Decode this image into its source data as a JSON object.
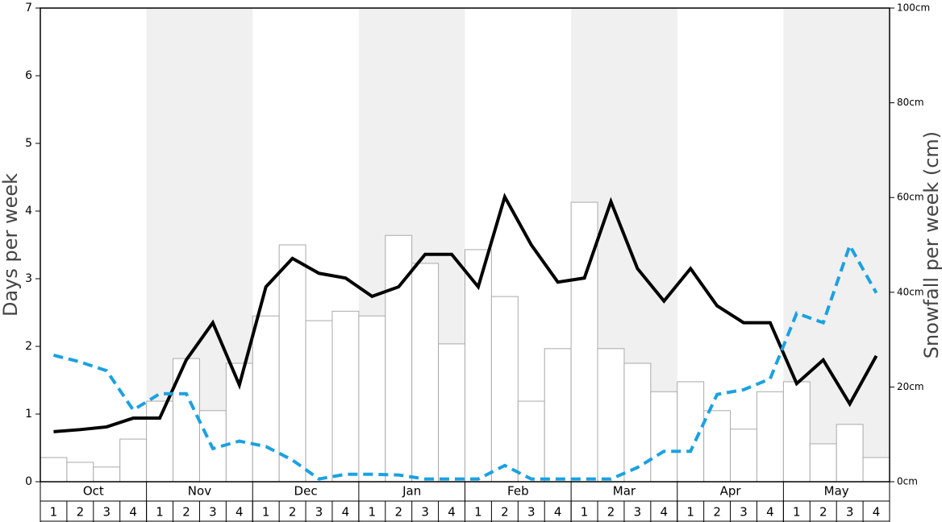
{
  "chart_data": {
    "type": "combo",
    "y_label": "Days per week",
    "y2_label": "Snowfall per week (cm)",
    "months": [
      "Oct",
      "Nov",
      "Dec",
      "Jan",
      "Feb",
      "Mar",
      "Apr",
      "May"
    ],
    "weeks": [
      "1",
      "2",
      "3",
      "4"
    ],
    "ylim": [
      0,
      7
    ],
    "yticks": [
      0,
      1,
      2,
      3,
      4,
      5,
      6,
      7
    ],
    "y2lim": [
      0,
      100
    ],
    "y2ticks": [
      {
        "value": 0,
        "label": "0cm"
      },
      {
        "value": 20,
        "label": "20cm"
      },
      {
        "value": 40,
        "label": "40cm"
      },
      {
        "value": 60,
        "label": "60cm"
      },
      {
        "value": 80,
        "label": "80cm"
      },
      {
        "value": 100,
        "label": "100cm"
      }
    ],
    "series": [
      {
        "type": "bar",
        "axis": "y2",
        "color": "#ffffff",
        "stroke": "#aaaaaa",
        "values": [
          5.1,
          4.1,
          3.1,
          9.0,
          17.0,
          26.0,
          15.0,
          25.0,
          35.0,
          50.0,
          34.0,
          36.0,
          35.0,
          52.0,
          46.1,
          29.1,
          49.0,
          39.1,
          17.0,
          28.1,
          59.0,
          28.1,
          25.0,
          19.0,
          21.1,
          15.0,
          11.1,
          19.0,
          21.1,
          8.0,
          12.1,
          5.1
        ]
      },
      {
        "type": "line",
        "axis": "y",
        "color": "#000000",
        "dashed": false,
        "values": [
          0.74,
          0.77,
          0.81,
          0.94,
          0.94,
          1.8,
          2.35,
          1.43,
          2.88,
          3.3,
          3.08,
          3.01,
          2.74,
          2.88,
          3.36,
          3.36,
          2.88,
          4.21,
          3.5,
          2.95,
          3.01,
          4.14,
          3.15,
          2.67,
          3.15,
          2.6,
          2.35,
          2.35,
          1.45,
          1.8,
          1.15,
          1.86
        ]
      },
      {
        "type": "line",
        "axis": "y",
        "color": "#1ba1e2",
        "dashed": true,
        "values": [
          1.87,
          1.77,
          1.64,
          1.06,
          1.3,
          1.3,
          0.49,
          0.6,
          0.52,
          0.32,
          0.04,
          0.11,
          0.11,
          0.1,
          0.04,
          0.04,
          0.04,
          0.24,
          0.04,
          0.04,
          0.04,
          0.04,
          0.21,
          0.45,
          0.45,
          1.29,
          1.36,
          1.52,
          2.49,
          2.35,
          3.49,
          2.79
        ]
      }
    ]
  }
}
